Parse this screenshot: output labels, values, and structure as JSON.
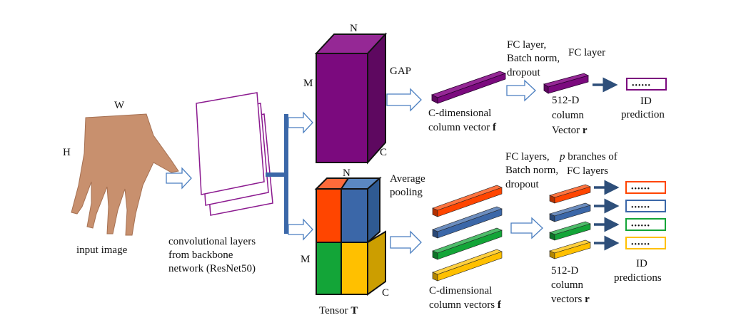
{
  "input": {
    "caption": "input image",
    "width_label": "W",
    "height_label": "H"
  },
  "backbone": {
    "caption_line1": "convolutional layers",
    "caption_line2": "from backbone",
    "caption_line3": "network (ResNet50)"
  },
  "global_branch": {
    "tensor_labels": {
      "n": "N",
      "m": "M",
      "c": "C"
    },
    "pool_label": "GAP",
    "vector_caption_line1": "C-dimensional",
    "vector_caption_line2": "column vector ",
    "vector_symbol": "f",
    "fc1_line1": "FC layer,",
    "fc1_line2": "Batch norm,",
    "fc1_line3": "dropout",
    "fc2_label": "FC layer",
    "r_line1": "512-D",
    "r_line2": "column",
    "r_line3": "Vector ",
    "r_symbol": "r",
    "pred_dots": "••••••",
    "pred_line1": "ID",
    "pred_line2": "prediction",
    "color": "#7b0a7e"
  },
  "part_branch": {
    "tensor_labels": {
      "n": "N",
      "m": "M",
      "c": "C"
    },
    "tensor_caption": "Tensor ",
    "tensor_symbol": "T",
    "pool_line1": "Average",
    "pool_line2": "pooling",
    "vector_caption_line1": "C-dimensional",
    "vector_caption_line2": "column vectors ",
    "vector_symbol": "f",
    "fc1_line1": "FC layers,",
    "fc1_line2": "Batch norm,",
    "fc1_line3": "dropout",
    "branches_p": "p",
    "branches_line1": " branches of",
    "branches_line2": "FC layers",
    "r_line1": "512-D",
    "r_line2": "column",
    "r_line3": "vectors ",
    "r_symbol": "r",
    "pred_dots": "••••••",
    "pred_line1": "ID",
    "pred_line2": "predictions",
    "colors": [
      "#ff4500",
      "#3b67a8",
      "#13a538",
      "#ffc000"
    ]
  }
}
